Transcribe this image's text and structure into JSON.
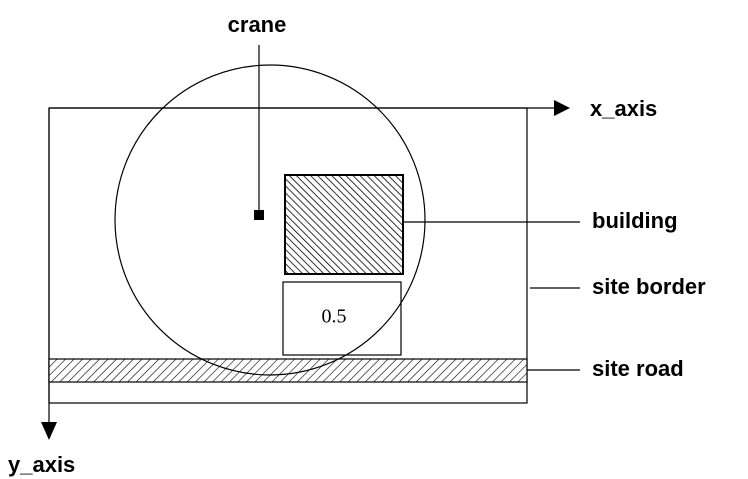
{
  "labels": {
    "crane": "crane",
    "x_axis": "x_axis",
    "y_axis": "y_axis",
    "building": "building",
    "site_border": "site border",
    "site_road": "site road"
  },
  "building_area": {
    "label": "0.5"
  }
}
